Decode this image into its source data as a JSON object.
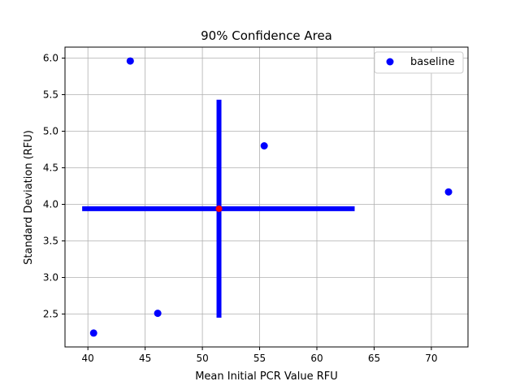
{
  "chart_data": {
    "type": "scatter",
    "title": "90% Confidence Area",
    "xlabel": "Mean Initial PCR Value RFU",
    "ylabel": "Standard Deviation (RFU)",
    "xlim": [
      38.0,
      73.2
    ],
    "ylim": [
      2.05,
      6.15
    ],
    "xticks": [
      40,
      45,
      50,
      55,
      60,
      65,
      70
    ],
    "yticks": [
      2.5,
      3.0,
      3.5,
      4.0,
      4.5,
      5.0,
      5.5,
      6.0
    ],
    "xtick_labels": [
      "40",
      "45",
      "50",
      "55",
      "60",
      "65",
      "70"
    ],
    "ytick_labels": [
      "2.5",
      "3.0",
      "3.5",
      "4.0",
      "4.5",
      "5.0",
      "5.5",
      "6.0"
    ],
    "grid": true,
    "legend": {
      "placement": "top-right",
      "entries": [
        "baseline"
      ]
    },
    "series": [
      {
        "name": "baseline",
        "color": "#0000ff",
        "marker": "circle",
        "points": [
          {
            "x": 40.5,
            "y": 2.24
          },
          {
            "x": 43.7,
            "y": 5.96
          },
          {
            "x": 46.1,
            "y": 2.51
          },
          {
            "x": 55.4,
            "y": 4.8
          },
          {
            "x": 71.5,
            "y": 4.17
          }
        ]
      }
    ],
    "confidence_area": {
      "color": "#0000ff",
      "center": {
        "x": 51.45,
        "y": 3.94,
        "color": "#ff0000"
      },
      "horizontal_bar": {
        "x_start": 39.5,
        "x_end": 63.3,
        "y": 3.94
      },
      "vertical_bar": {
        "x": 51.45,
        "y_start": 2.45,
        "y_end": 5.43
      }
    }
  }
}
